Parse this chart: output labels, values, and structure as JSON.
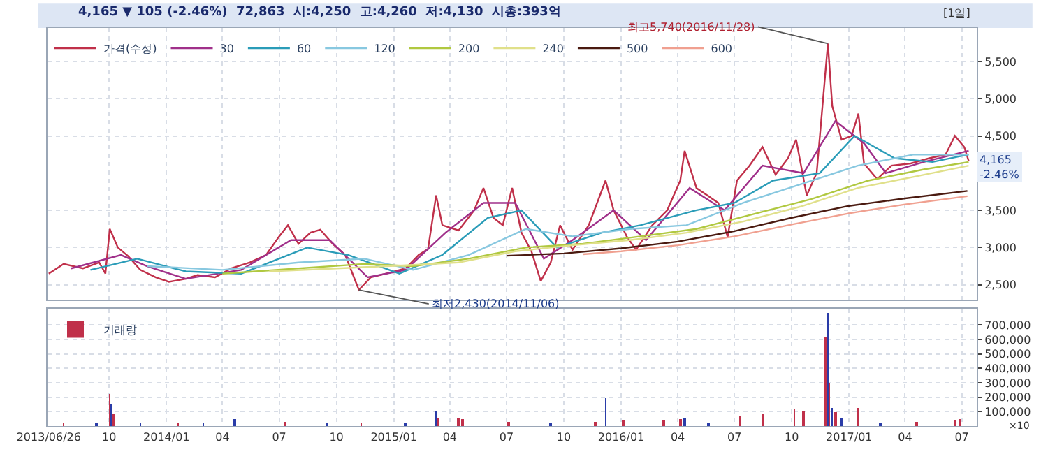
{
  "chart_data": [
    {
      "type": "line",
      "title": "4,165 ▼ 105 (-2.46%)  72,863  시:4,250  고:4,260  저:4,130  시총:393억",
      "xlim": [
        "2013-06-24",
        "2017-07-25"
      ],
      "xticks": [
        {
          "value": "2013-06-26",
          "label": null
        },
        {
          "value": "2013-10-01",
          "label": null
        },
        {
          "value": "2014-01-01",
          "label": null
        },
        {
          "value": "2014-04-01",
          "label": null
        },
        {
          "value": "2014-07-01",
          "label": null
        },
        {
          "value": "2014-10-01",
          "label": null
        },
        {
          "value": "2015-01-01",
          "label": null
        },
        {
          "value": "2015-04-01",
          "label": null
        },
        {
          "value": "2015-07-01",
          "label": null
        },
        {
          "value": "2015-10-01",
          "label": null
        },
        {
          "value": "2016-01-01",
          "label": null
        },
        {
          "value": "2016-04-01",
          "label": null
        },
        {
          "value": "2016-07-01",
          "label": null
        },
        {
          "value": "2016-10-01",
          "label": null
        },
        {
          "value": "2017-01-01",
          "label": null
        },
        {
          "value": "2017-04-01",
          "label": null
        },
        {
          "value": "2017-07-01",
          "label": null
        }
      ],
      "ylim": [
        2300,
        5950
      ],
      "yticks": [
        {
          "value": 2500,
          "label": "2,500"
        },
        {
          "value": 3000,
          "label": "3,000"
        },
        {
          "value": 3500,
          "label": "3,500"
        },
        {
          "value": 4500,
          "label": "4,500"
        },
        {
          "value": 5000,
          "label": "5,000"
        },
        {
          "value": 5500,
          "label": "5,500"
        }
      ],
      "tick_labels": "y",
      "grid": true,
      "legend": "top left",
      "marker": "none",
      "line_style": "solid",
      "annotations": [
        "[1일]",
        {
          "text": "최고5,740(2016/11/28)",
          "x": "2016-11-28",
          "y": 5740
        },
        {
          "text": "최저2,430(2014/11/06)",
          "x": "2014-11-06",
          "y": 2430
        },
        {
          "text": "4,165\n-2.46%",
          "x": "2017-07-12",
          "y": 4165
        }
      ],
      "series": [
        {
          "name": "가격(수정)",
          "color": "#c0304a",
          "x": [
            "2013-06-26",
            "2013-07-20",
            "2013-08-20",
            "2013-09-15",
            "2013-09-25",
            "2013-10-02",
            "2013-10-15",
            "2013-11-01",
            "2013-11-20",
            "2013-12-15",
            "2014-01-05",
            "2014-02-01",
            "2014-02-20",
            "2014-03-20",
            "2014-04-15",
            "2014-05-15",
            "2014-06-10",
            "2014-07-01",
            "2014-07-15",
            "2014-08-01",
            "2014-08-20",
            "2014-09-05",
            "2014-09-25",
            "2014-10-15",
            "2014-11-06",
            "2014-11-25",
            "2014-12-20",
            "2015-01-20",
            "2015-02-10",
            "2015-02-25",
            "2015-03-10",
            "2015-03-20",
            "2015-04-15",
            "2015-05-10",
            "2015-05-25",
            "2015-06-10",
            "2015-06-25",
            "2015-07-10",
            "2015-07-25",
            "2015-08-10",
            "2015-08-25",
            "2015-09-10",
            "2015-09-25",
            "2015-10-15",
            "2015-11-10",
            "2015-12-07",
            "2015-12-20",
            "2016-01-10",
            "2016-01-25",
            "2016-02-20",
            "2016-03-15",
            "2016-04-05",
            "2016-04-12",
            "2016-05-01",
            "2016-06-05",
            "2016-06-20",
            "2016-07-05",
            "2016-07-25",
            "2016-08-15",
            "2016-09-05",
            "2016-09-25",
            "2016-10-08",
            "2016-10-25",
            "2016-11-10",
            "2016-11-28",
            "2016-12-05",
            "2016-12-20",
            "2017-01-05",
            "2017-01-16",
            "2017-01-25",
            "2017-02-15",
            "2017-03-10",
            "2017-04-10",
            "2017-05-10",
            "2017-06-05",
            "2017-06-20",
            "2017-07-05",
            "2017-07-12"
          ],
          "values": [
            2650,
            2780,
            2720,
            2800,
            2650,
            3250,
            3000,
            2880,
            2700,
            2600,
            2540,
            2580,
            2630,
            2600,
            2720,
            2800,
            2900,
            3150,
            3300,
            3050,
            3200,
            3240,
            3050,
            2900,
            2430,
            2600,
            2650,
            2720,
            2900,
            2980,
            3700,
            3300,
            3230,
            3500,
            3800,
            3400,
            3300,
            3800,
            3200,
            2950,
            2550,
            2800,
            3300,
            2970,
            3300,
            3900,
            3500,
            3150,
            2970,
            3300,
            3500,
            3900,
            4300,
            3800,
            3600,
            3140,
            3900,
            4100,
            4350,
            3980,
            4200,
            4450,
            3700,
            4000,
            5740,
            4900,
            4450,
            4500,
            4800,
            4130,
            3920,
            4100,
            4130,
            4200,
            4250,
            4500,
            4350,
            4165
          ]
        },
        {
          "name": "30",
          "color": "#a0308a",
          "x": [
            "2013-08-01",
            "2013-10-20",
            "2013-12-01",
            "2014-02-01",
            "2014-05-01",
            "2014-07-20",
            "2014-09-20",
            "2014-11-20",
            "2015-01-20",
            "2015-03-25",
            "2015-05-25",
            "2015-07-15",
            "2015-08-30",
            "2015-10-15",
            "2015-12-20",
            "2016-02-10",
            "2016-04-20",
            "2016-06-15",
            "2016-08-15",
            "2016-10-20",
            "2016-12-10",
            "2017-01-25",
            "2017-03-01",
            "2017-05-01",
            "2017-07-12"
          ],
          "values": [
            2720,
            2900,
            2750,
            2580,
            2700,
            3100,
            3100,
            2600,
            2700,
            3200,
            3600,
            3600,
            2850,
            3100,
            3500,
            3100,
            3800,
            3500,
            4100,
            4000,
            4700,
            4400,
            4000,
            4150,
            4300
          ]
        },
        {
          "name": "60",
          "color": "#2a9cb8",
          "x": [
            "2013-09-01",
            "2013-11-15",
            "2014-02-01",
            "2014-05-01",
            "2014-08-15",
            "2014-10-20",
            "2015-01-10",
            "2015-03-20",
            "2015-06-01",
            "2015-07-25",
            "2015-09-20",
            "2015-12-01",
            "2016-02-01",
            "2016-04-30",
            "2016-07-01",
            "2016-09-01",
            "2016-11-15",
            "2017-01-10",
            "2017-03-15",
            "2017-05-15",
            "2017-07-12"
          ],
          "values": [
            2700,
            2850,
            2680,
            2650,
            3000,
            2900,
            2650,
            2900,
            3400,
            3500,
            3000,
            3200,
            3300,
            3500,
            3600,
            3900,
            4000,
            4500,
            4200,
            4150,
            4250
          ]
        },
        {
          "name": "120",
          "color": "#88c8e0",
          "x": [
            "2013-12-01",
            "2014-04-01",
            "2014-08-01",
            "2014-11-15",
            "2015-02-01",
            "2015-05-01",
            "2015-08-01",
            "2015-10-15",
            "2016-01-15",
            "2016-04-15",
            "2016-07-15",
            "2016-10-15",
            "2017-01-15",
            "2017-04-15",
            "2017-07-12"
          ],
          "values": [
            2750,
            2700,
            2800,
            2850,
            2700,
            2900,
            3250,
            3150,
            3250,
            3300,
            3600,
            3850,
            4100,
            4250,
            4250
          ]
        },
        {
          "name": "200",
          "color": "#b0c840",
          "x": [
            "2014-04-01",
            "2014-08-01",
            "2014-11-15",
            "2015-02-01",
            "2015-05-01",
            "2015-08-01",
            "2015-11-01",
            "2016-02-01",
            "2016-05-01",
            "2016-08-01",
            "2016-11-01",
            "2017-02-01",
            "2017-05-01",
            "2017-07-12"
          ],
          "values": [
            2650,
            2720,
            2780,
            2750,
            2850,
            3000,
            3050,
            3150,
            3250,
            3450,
            3650,
            3900,
            4050,
            4150
          ]
        },
        {
          "name": "240",
          "color": "#e0e08a",
          "x": [
            "2014-06-15",
            "2014-10-01",
            "2015-01-15",
            "2015-04-15",
            "2015-07-15",
            "2015-10-15",
            "2016-01-15",
            "2016-04-15",
            "2016-07-15",
            "2016-10-15",
            "2017-01-15",
            "2017-04-15",
            "2017-07-12"
          ],
          "values": [
            2680,
            2720,
            2760,
            2800,
            2950,
            3030,
            3100,
            3200,
            3350,
            3550,
            3800,
            3950,
            4100
          ]
        },
        {
          "name": "500",
          "color": "#4a1a10",
          "x": [
            "2015-07-01",
            "2015-10-01",
            "2016-01-01",
            "2016-04-01",
            "2016-07-01",
            "2016-10-01",
            "2017-01-01",
            "2017-04-01",
            "2017-07-10"
          ],
          "values": [
            2890,
            2920,
            2990,
            3080,
            3220,
            3400,
            3560,
            3660,
            3760
          ]
        },
        {
          "name": "600",
          "color": "#f0a090",
          "x": [
            "2015-11-01",
            "2016-01-01",
            "2016-04-01",
            "2016-07-01",
            "2016-10-01",
            "2017-01-01",
            "2017-04-01",
            "2017-07-10"
          ],
          "values": [
            2910,
            2950,
            3030,
            3150,
            3310,
            3460,
            3580,
            3690
          ]
        }
      ]
    },
    {
      "type": "bar",
      "legend": "top left",
      "grid": true,
      "xlim": [
        "2013-06-24",
        "2017-07-25"
      ],
      "xticks": [
        {
          "value": "2013-06-26",
          "label": "2013/06/26"
        },
        {
          "value": "2013-10-01",
          "label": "10"
        },
        {
          "value": "2014-01-01",
          "label": "2014/01"
        },
        {
          "value": "2014-04-01",
          "label": "04"
        },
        {
          "value": "2014-07-01",
          "label": "07"
        },
        {
          "value": "2014-10-01",
          "label": "10"
        },
        {
          "value": "2015-01-01",
          "label": "2015/01"
        },
        {
          "value": "2015-04-01",
          "label": "04"
        },
        {
          "value": "2015-07-01",
          "label": "07"
        },
        {
          "value": "2015-10-01",
          "label": "10"
        },
        {
          "value": "2016-01-01",
          "label": "2016/01"
        },
        {
          "value": "2016-04-01",
          "label": "04"
        },
        {
          "value": "2016-07-01",
          "label": "07"
        },
        {
          "value": "2016-10-01",
          "label": "10"
        },
        {
          "value": "2017-01-01",
          "label": "2017/01"
        },
        {
          "value": "2017-04-01",
          "label": "04"
        },
        {
          "value": "2017-07-01",
          "label": "07"
        }
      ],
      "ylim": [
        0,
        810000
      ],
      "yticks": [
        {
          "value": 100000,
          "label": "100,000"
        },
        {
          "value": 200000,
          "label": "200,000"
        },
        {
          "value": 300000,
          "label": "300,000"
        },
        {
          "value": 400000,
          "label": "400,000"
        },
        {
          "value": 500000,
          "label": "500,000"
        },
        {
          "value": 600000,
          "label": "600,000"
        },
        {
          "value": 700000,
          "label": "700,000"
        }
      ],
      "ylabel": "×10",
      "series": [
        {
          "name": "거래량",
          "color": "#c0304a",
          "x": [
            "2013-07-20",
            "2013-09-10",
            "2013-10-02",
            "2013-10-04",
            "2013-10-08",
            "2013-11-20",
            "2014-01-20",
            "2014-03-01",
            "2014-04-20",
            "2014-07-10",
            "2014-09-15",
            "2014-11-10",
            "2015-01-20",
            "2015-03-10",
            "2015-03-13",
            "2015-04-15",
            "2015-04-22",
            "2015-07-05",
            "2015-09-10",
            "2015-11-20",
            "2015-12-07",
            "2016-01-05",
            "2016-03-10",
            "2016-04-05",
            "2016-04-12",
            "2016-05-20",
            "2016-07-10",
            "2016-08-15",
            "2016-10-05",
            "2016-10-20",
            "2016-11-24",
            "2016-11-28",
            "2016-11-30",
            "2016-12-05",
            "2016-12-10",
            "2016-12-20",
            "2017-01-16",
            "2017-02-20",
            "2017-04-20",
            "2017-06-20",
            "2017-06-28"
          ],
          "values": [
            10000,
            10000,
            220000,
            150000,
            80000,
            20000,
            10000,
            10000,
            50000,
            30000,
            10000,
            20000,
            10000,
            100000,
            60000,
            60000,
            50000,
            30000,
            10000,
            30000,
            190000,
            40000,
            40000,
            50000,
            60000,
            20000,
            70000,
            80000,
            110000,
            100000,
            620000,
            780000,
            300000,
            120000,
            90000,
            60000,
            120000,
            20000,
            30000,
            40000,
            50000
          ],
          "colors": [
            "#c0304a",
            "#2a3ca8",
            "#c0304a",
            "#2a3ca8",
            "#c0304a",
            "#2a3ca8",
            "#c0304a",
            "#2a3ca8",
            "#2a3ca8",
            "#c0304a",
            "#2a3ca8",
            "#c0304a",
            "#2a3ca8",
            "#2a3ca8",
            "#c0304a",
            "#c0304a",
            "#c0304a",
            "#c0304a",
            "#2a3ca8",
            "#c0304a",
            "#2a3ca8",
            "#c0304a",
            "#c0304a",
            "#c0304a",
            "#2a3ca8",
            "#2a3ca8",
            "#c0304a",
            "#c0304a",
            "#c0304a",
            "#c0304a",
            "#c0304a",
            "#2a3ca8",
            "#c0304a",
            "#2a3ca8",
            "#c0304a",
            "#2a3ca8",
            "#c0304a",
            "#2a3ca8",
            "#c0304a",
            "#c0304a",
            "#c0304a"
          ]
        }
      ]
    }
  ]
}
